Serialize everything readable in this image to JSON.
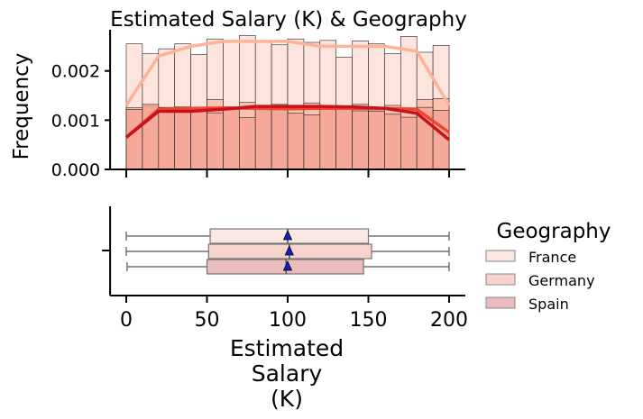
{
  "chart_data": [
    {
      "type": "histogram",
      "title": "Estimated Salary (K) & Geography",
      "xlabel": "",
      "ylabel": "Frequency",
      "xlim": [
        -10,
        210
      ],
      "ylim": [
        0,
        0.0028
      ],
      "yticks": [
        0,
        0.001,
        0.002
      ],
      "ytick_labels": [
        "0.000",
        "0.001",
        "0.002"
      ],
      "bin_edges": [
        0,
        10,
        20,
        30,
        40,
        50,
        60,
        70,
        80,
        90,
        100,
        110,
        120,
        130,
        140,
        150,
        160,
        170,
        180,
        190,
        200
      ],
      "series": [
        {
          "name": "France",
          "color": "#fde4dc",
          "kde_color": "#fcb398",
          "values": [
            0.00255,
            0.00235,
            0.00245,
            0.00255,
            0.00233,
            0.00265,
            0.0026,
            0.00272,
            0.00258,
            0.00253,
            0.00265,
            0.00258,
            0.00262,
            0.00228,
            0.00261,
            0.00255,
            0.00235,
            0.0027,
            0.00238,
            0.00252
          ],
          "kde": [
            0.0013,
            0.0023,
            0.0025,
            0.0026,
            0.0026,
            0.0026,
            0.0025,
            0.0025,
            0.0025,
            0.0024,
            0.0013
          ]
        },
        {
          "name": "Germany",
          "color": "#fab8a0",
          "kde_color": "#f0462e",
          "values": [
            0.00125,
            0.00128,
            0.00126,
            0.00127,
            0.00122,
            0.00142,
            0.00122,
            0.00136,
            0.00128,
            0.00132,
            0.00121,
            0.00135,
            0.00128,
            0.00126,
            0.00132,
            0.00121,
            0.0013,
            0.00125,
            0.00142,
            0.00144
          ],
          "kde": [
            0.00065,
            0.00122,
            0.00124,
            0.00125,
            0.00124,
            0.00123,
            0.00124,
            0.00124,
            0.00124,
            0.00122,
            0.00075
          ]
        },
        {
          "name": "Spain",
          "color": "#f4a090",
          "kde_color": "#c8111e",
          "values": [
            0.00122,
            0.00132,
            0.00125,
            0.00118,
            0.00122,
            0.00115,
            0.00122,
            0.00105,
            0.00126,
            0.00127,
            0.00114,
            0.00111,
            0.00128,
            0.00126,
            0.00119,
            0.00118,
            0.00112,
            0.00106,
            0.00126,
            0.0012
          ],
          "kde": [
            0.00065,
            0.00118,
            0.00118,
            0.00122,
            0.00128,
            0.00128,
            0.00128,
            0.00127,
            0.00124,
            0.00114,
            0.0006
          ]
        }
      ]
    },
    {
      "type": "box",
      "xlabel": "Estimated Salary (K)",
      "xlim": [
        -10,
        210
      ],
      "xticks": [
        0,
        50,
        100,
        150,
        200
      ],
      "boxes": [
        {
          "name": "France",
          "color": "#fce8e2",
          "min": 0,
          "q1": 52,
          "median": 100,
          "mean": 100,
          "q3": 150,
          "max": 200
        },
        {
          "name": "Germany",
          "color": "#f6d3cc",
          "min": 0,
          "q1": 51,
          "median": 101,
          "mean": 101,
          "q3": 152,
          "max": 200
        },
        {
          "name": "Spain",
          "color": "#ebbcbc",
          "min": 0.5,
          "q1": 50,
          "median": 99,
          "mean": 100,
          "q3": 147,
          "max": 200
        }
      ],
      "mean_marker_color": "#1020c8"
    }
  ],
  "legend": {
    "title": "Geography",
    "position": "right",
    "items": [
      {
        "label": "France",
        "color": "#fce8e2"
      },
      {
        "label": "Germany",
        "color": "#f6d3cc"
      },
      {
        "label": "Spain",
        "color": "#ebbcbc"
      }
    ]
  }
}
